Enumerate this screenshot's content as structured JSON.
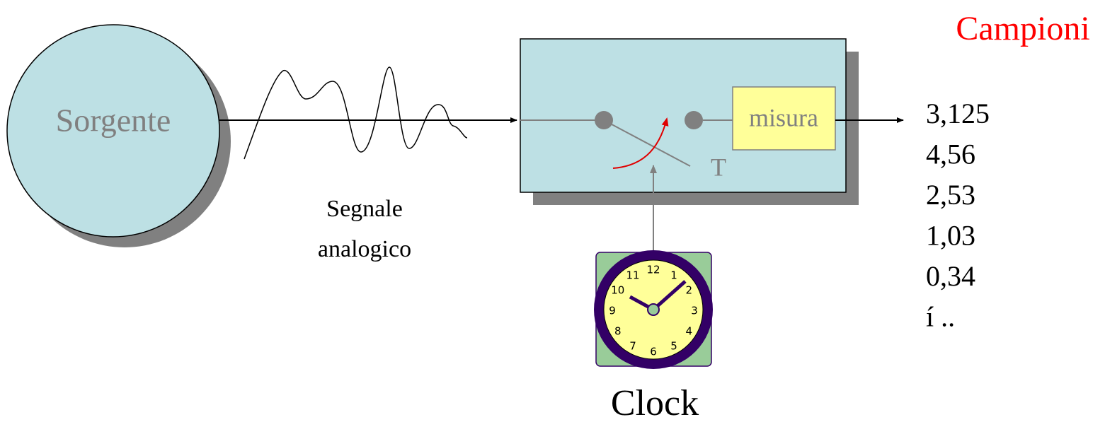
{
  "source": {
    "label": "Sorgente"
  },
  "signal": {
    "lines": [
      "Segnale",
      "analogico"
    ]
  },
  "sampler": {
    "switch_label": "T",
    "measure_label": "misura"
  },
  "clock": {
    "label": "Clock",
    "numbers": [
      "12",
      "1",
      "2",
      "3",
      "4",
      "5",
      "6",
      "7",
      "8",
      "9",
      "10",
      "11"
    ]
  },
  "samples": {
    "title": "Campioni",
    "items": [
      "3,125",
      "4,56",
      "2,53",
      "1,03",
      "0,34",
      "í  .."
    ]
  }
}
